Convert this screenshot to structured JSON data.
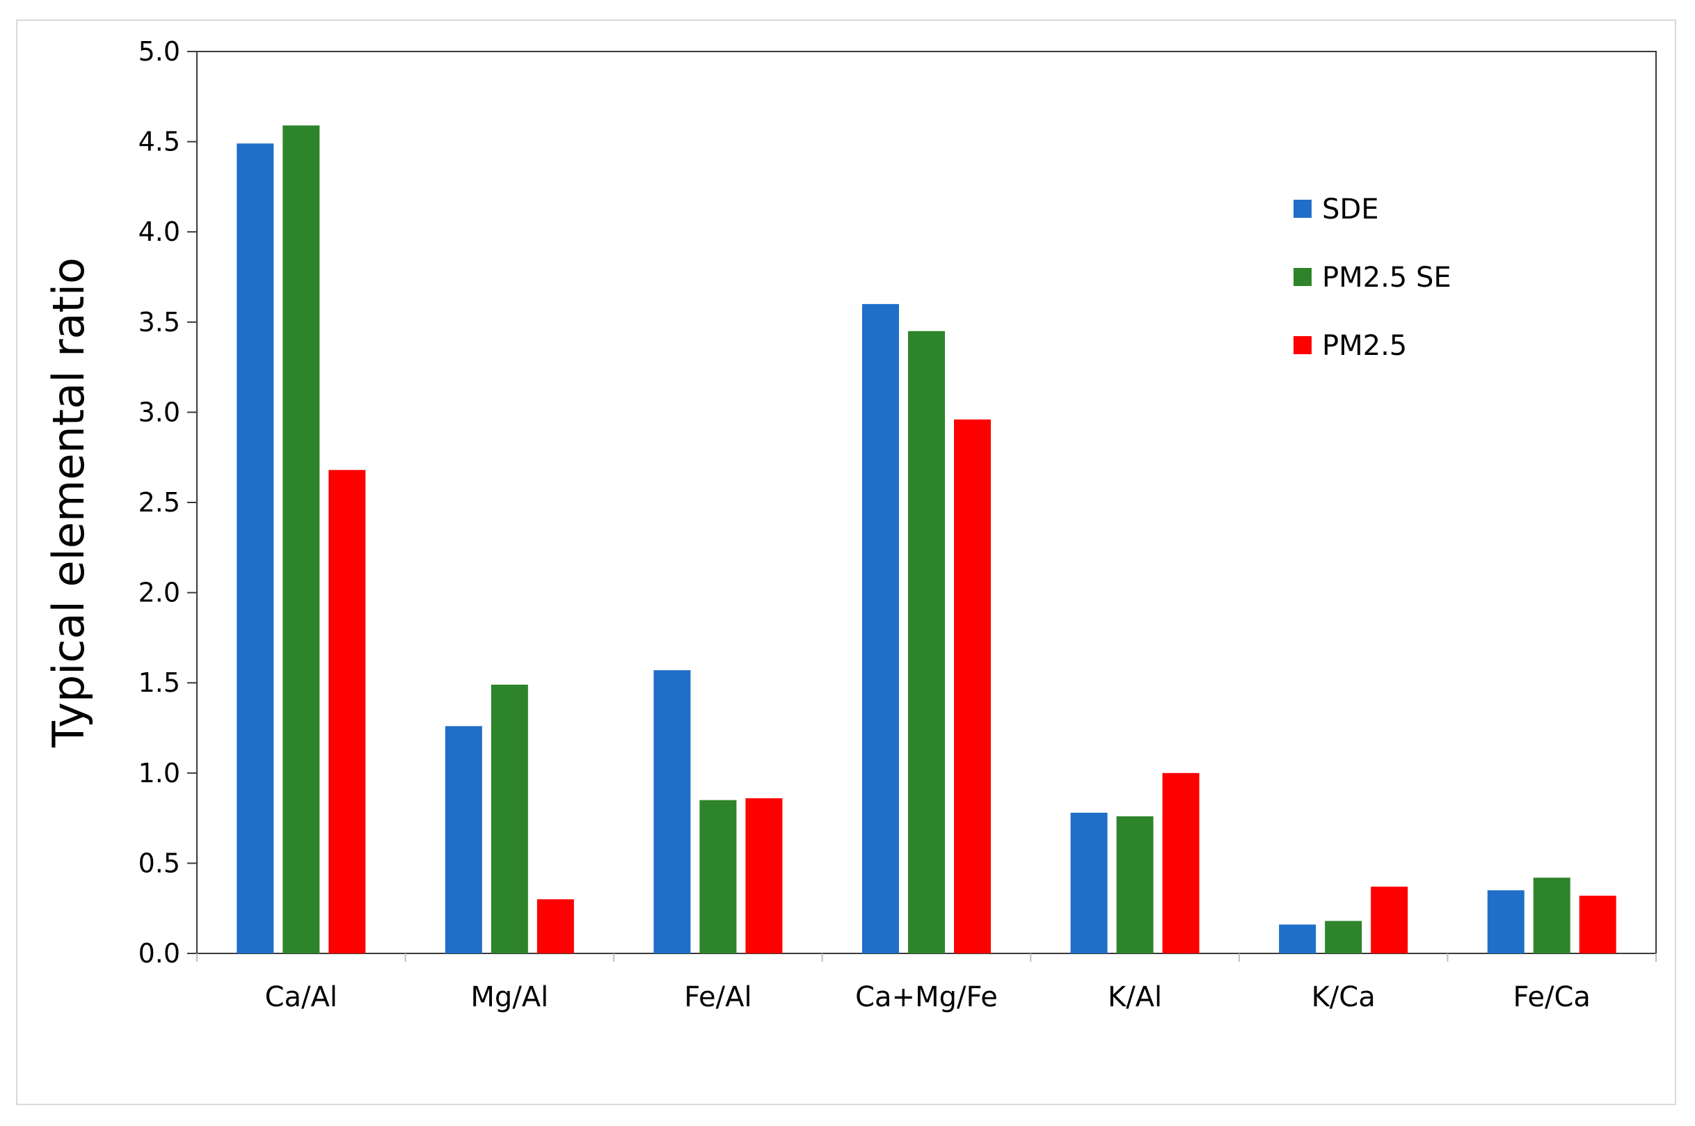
{
  "chart_data": {
    "type": "bar",
    "title": "",
    "xlabel": "",
    "ylabel": "Typical elemental ratio",
    "ylim": [
      0,
      5.0
    ],
    "yticks": [
      "0.0",
      "0.5",
      "1.0",
      "1.5",
      "2.0",
      "2.5",
      "3.0",
      "3.5",
      "4.0",
      "4.5",
      "5.0"
    ],
    "grid": false,
    "legend_position": "top-right",
    "categories": [
      "Ca/Al",
      "Mg/Al",
      "Fe/Al",
      "Ca+Mg/Fe",
      "K/Al",
      "K/Ca",
      "Fe/Ca"
    ],
    "series": [
      {
        "name": "SDE",
        "color": "#1f6fc9",
        "values": [
          4.49,
          1.26,
          1.57,
          3.6,
          0.78,
          0.16,
          0.35
        ]
      },
      {
        "name": "PM2.5 SE",
        "color": "#2e842a",
        "values": [
          4.59,
          1.49,
          0.85,
          3.45,
          0.76,
          0.18,
          0.42
        ]
      },
      {
        "name": "PM2.5",
        "color": "#ff0000",
        "values": [
          2.68,
          0.3,
          0.86,
          2.96,
          1.0,
          0.37,
          0.32
        ]
      }
    ]
  }
}
